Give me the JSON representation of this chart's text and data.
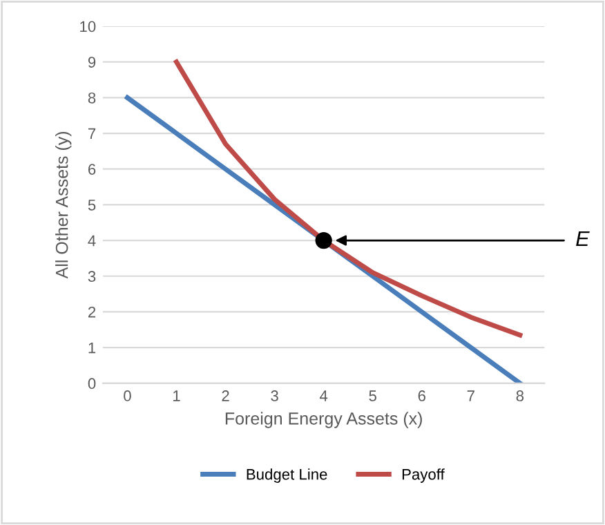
{
  "chart_data": {
    "type": "line",
    "xlabel": "Foreign Energy Assets (x)",
    "ylabel": "All Other Assets (y)",
    "xlim": [
      -0.5,
      8.5
    ],
    "xticks": [
      0,
      1,
      2,
      3,
      4,
      5,
      6,
      7,
      8
    ],
    "ylim": [
      0,
      10
    ],
    "yticks": [
      0,
      1,
      2,
      3,
      4,
      5,
      6,
      7,
      8,
      9,
      10
    ],
    "grid": "y",
    "legend": "bottom",
    "marker": "none",
    "line_style": "solid",
    "series": [
      {
        "name": "Budget Line",
        "color": "#4a7ebb",
        "x": [
          0,
          1,
          2,
          3,
          4,
          5,
          6,
          7,
          8
        ],
        "values": [
          8,
          7,
          6,
          5,
          4,
          3,
          2,
          1,
          0
        ]
      },
      {
        "name": "Payoff",
        "color": "#be4b48",
        "x": [
          1,
          2,
          3,
          4,
          5,
          6,
          7,
          8
        ],
        "values": [
          9,
          6.7,
          5.15,
          4,
          3.1,
          2.45,
          1.85,
          1.35
        ]
      },
      {
        "type": "scatter",
        "color": "#000000",
        "x": [
          4
        ],
        "values": [
          4
        ],
        "marker": "circle"
      }
    ],
    "annotations": [
      "E"
    ]
  }
}
